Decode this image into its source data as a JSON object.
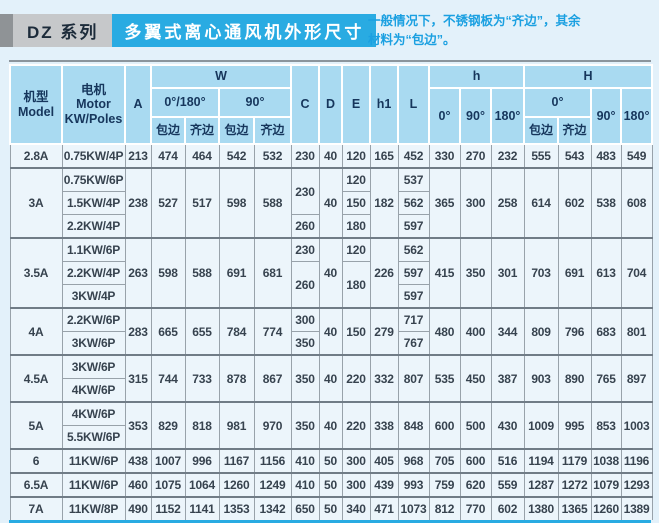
{
  "title": {
    "series": "DZ 系列",
    "name": "多翼式离心通风机外形尺寸"
  },
  "note": {
    "line1": "一般情况下，不锈钢板为“齐边”，其余",
    "line2": "材料为“包边”。"
  },
  "colors": {
    "accent": "#29abe2",
    "header_bg": "#a9daf1",
    "cell_bg": "#ecf5fb",
    "page_bg": "#e3f1fa",
    "header_text": "#16365c",
    "series_box_bg": "#c6c8ca"
  },
  "table": {
    "header": {
      "model": {
        "cn": "机型",
        "en": "Model"
      },
      "motor": {
        "cn": "电机 Motor",
        "en": "KW/Poles"
      },
      "a": "A",
      "w": {
        "label": "W",
        "d0180": "0°/180°",
        "d90": "90°"
      },
      "edge": {
        "wrap": "包边",
        "flush": "齐边"
      },
      "c": "C",
      "d": "D",
      "e": "E",
      "h1": "h1",
      "l": "L",
      "h": {
        "label": "h",
        "d0": "0°",
        "d90": "90°",
        "d180": "180°"
      },
      "hh": {
        "label": "H",
        "d0": "0°",
        "d90": "90°",
        "d180": "180°"
      }
    },
    "rows": [
      {
        "group": true,
        "cells": [
          "2.8A",
          "0.75KW/4P",
          "213",
          "474",
          "464",
          "542",
          "532",
          "230",
          "40",
          "120",
          "165",
          "452",
          "330",
          "270",
          "232",
          "555",
          "543",
          "483",
          "549"
        ]
      },
      {
        "group": true,
        "cells": [
          {
            "v": "3A",
            "rs": 3
          },
          "0.75KW/6P",
          {
            "v": "238",
            "rs": 3
          },
          {
            "v": "527",
            "rs": 3
          },
          {
            "v": "517",
            "rs": 3
          },
          {
            "v": "598",
            "rs": 3
          },
          {
            "v": "588",
            "rs": 3
          },
          {
            "v": "230",
            "rs": 2
          },
          {
            "v": "40",
            "rs": 3
          },
          "120",
          {
            "v": "182",
            "rs": 3
          },
          "537",
          {
            "v": "365",
            "rs": 3
          },
          {
            "v": "300",
            "rs": 3
          },
          {
            "v": "258",
            "rs": 3
          },
          {
            "v": "614",
            "rs": 3
          },
          {
            "v": "602",
            "rs": 3
          },
          {
            "v": "538",
            "rs": 3
          },
          {
            "v": "608",
            "rs": 3
          }
        ]
      },
      {
        "cells": [
          "1.5KW/4P",
          "150",
          "562"
        ]
      },
      {
        "cells": [
          "2.2KW/4P",
          "260",
          "180",
          "597"
        ]
      },
      {
        "group": true,
        "cells": [
          {
            "v": "3.5A",
            "rs": 3
          },
          "1.1KW/6P",
          {
            "v": "263",
            "rs": 3
          },
          {
            "v": "598",
            "rs": 3
          },
          {
            "v": "588",
            "rs": 3
          },
          {
            "v": "691",
            "rs": 3
          },
          {
            "v": "681",
            "rs": 3
          },
          "230",
          {
            "v": "40",
            "rs": 3
          },
          "120",
          {
            "v": "226",
            "rs": 3
          },
          "562",
          {
            "v": "415",
            "rs": 3
          },
          {
            "v": "350",
            "rs": 3
          },
          {
            "v": "301",
            "rs": 3
          },
          {
            "v": "703",
            "rs": 3
          },
          {
            "v": "691",
            "rs": 3
          },
          {
            "v": "613",
            "rs": 3
          },
          {
            "v": "704",
            "rs": 3
          }
        ]
      },
      {
        "cells": [
          "2.2KW/4P",
          {
            "v": "260",
            "rs": 2
          },
          {
            "v": "180",
            "rs": 2
          },
          "597"
        ]
      },
      {
        "cells": [
          "3KW/4P",
          "597"
        ]
      },
      {
        "group": true,
        "cells": [
          {
            "v": "4A",
            "rs": 2
          },
          "2.2KW/6P",
          {
            "v": "283",
            "rs": 2
          },
          {
            "v": "665",
            "rs": 2
          },
          {
            "v": "655",
            "rs": 2
          },
          {
            "v": "784",
            "rs": 2
          },
          {
            "v": "774",
            "rs": 2
          },
          "300",
          {
            "v": "40",
            "rs": 2
          },
          {
            "v": "150",
            "rs": 2
          },
          {
            "v": "279",
            "rs": 2
          },
          "717",
          {
            "v": "480",
            "rs": 2
          },
          {
            "v": "400",
            "rs": 2
          },
          {
            "v": "344",
            "rs": 2
          },
          {
            "v": "809",
            "rs": 2
          },
          {
            "v": "796",
            "rs": 2
          },
          {
            "v": "683",
            "rs": 2
          },
          {
            "v": "801",
            "rs": 2
          }
        ]
      },
      {
        "cells": [
          "3KW/6P",
          "350",
          "767"
        ]
      },
      {
        "group": true,
        "cells": [
          {
            "v": "4.5A",
            "rs": 2
          },
          "3KW/6P",
          {
            "v": "315",
            "rs": 2
          },
          {
            "v": "744",
            "rs": 2
          },
          {
            "v": "733",
            "rs": 2
          },
          {
            "v": "878",
            "rs": 2
          },
          {
            "v": "867",
            "rs": 2
          },
          {
            "v": "350",
            "rs": 2
          },
          {
            "v": "40",
            "rs": 2
          },
          {
            "v": "220",
            "rs": 2
          },
          {
            "v": "332",
            "rs": 2
          },
          {
            "v": "807",
            "rs": 2
          },
          {
            "v": "535",
            "rs": 2
          },
          {
            "v": "450",
            "rs": 2
          },
          {
            "v": "387",
            "rs": 2
          },
          {
            "v": "903",
            "rs": 2
          },
          {
            "v": "890",
            "rs": 2
          },
          {
            "v": "765",
            "rs": 2
          },
          {
            "v": "897",
            "rs": 2
          }
        ]
      },
      {
        "cells": [
          "4KW/6P"
        ]
      },
      {
        "group": true,
        "cells": [
          {
            "v": "5A",
            "rs": 2
          },
          "4KW/6P",
          {
            "v": "353",
            "rs": 2
          },
          {
            "v": "829",
            "rs": 2
          },
          {
            "v": "818",
            "rs": 2
          },
          {
            "v": "981",
            "rs": 2
          },
          {
            "v": "970",
            "rs": 2
          },
          {
            "v": "350",
            "rs": 2
          },
          {
            "v": "40",
            "rs": 2
          },
          {
            "v": "220",
            "rs": 2
          },
          {
            "v": "338",
            "rs": 2
          },
          {
            "v": "848",
            "rs": 2
          },
          {
            "v": "600",
            "rs": 2
          },
          {
            "v": "500",
            "rs": 2
          },
          {
            "v": "430",
            "rs": 2
          },
          {
            "v": "1009",
            "rs": 2
          },
          {
            "v": "995",
            "rs": 2
          },
          {
            "v": "853",
            "rs": 2
          },
          {
            "v": "1003",
            "rs": 2
          }
        ]
      },
      {
        "cells": [
          "5.5KW/6P"
        ]
      },
      {
        "group": true,
        "cells": [
          "6",
          "11KW/6P",
          "438",
          "1007",
          "996",
          "1167",
          "1156",
          "410",
          "50",
          "300",
          "405",
          "968",
          "705",
          "600",
          "516",
          "1194",
          "1179",
          "1038",
          "1196"
        ]
      },
      {
        "group": true,
        "cells": [
          "6.5A",
          "11KW/6P",
          "460",
          "1075",
          "1064",
          "1260",
          "1249",
          "410",
          "50",
          "300",
          "439",
          "993",
          "759",
          "620",
          "559",
          "1287",
          "1272",
          "1079",
          "1293"
        ]
      },
      {
        "group": true,
        "cells": [
          "7A",
          "11KW/8P",
          "490",
          "1152",
          "1141",
          "1353",
          "1342",
          "650",
          "50",
          "340",
          "471",
          "1073",
          "812",
          "770",
          "602",
          "1380",
          "1365",
          "1260",
          "1389"
        ]
      }
    ]
  }
}
